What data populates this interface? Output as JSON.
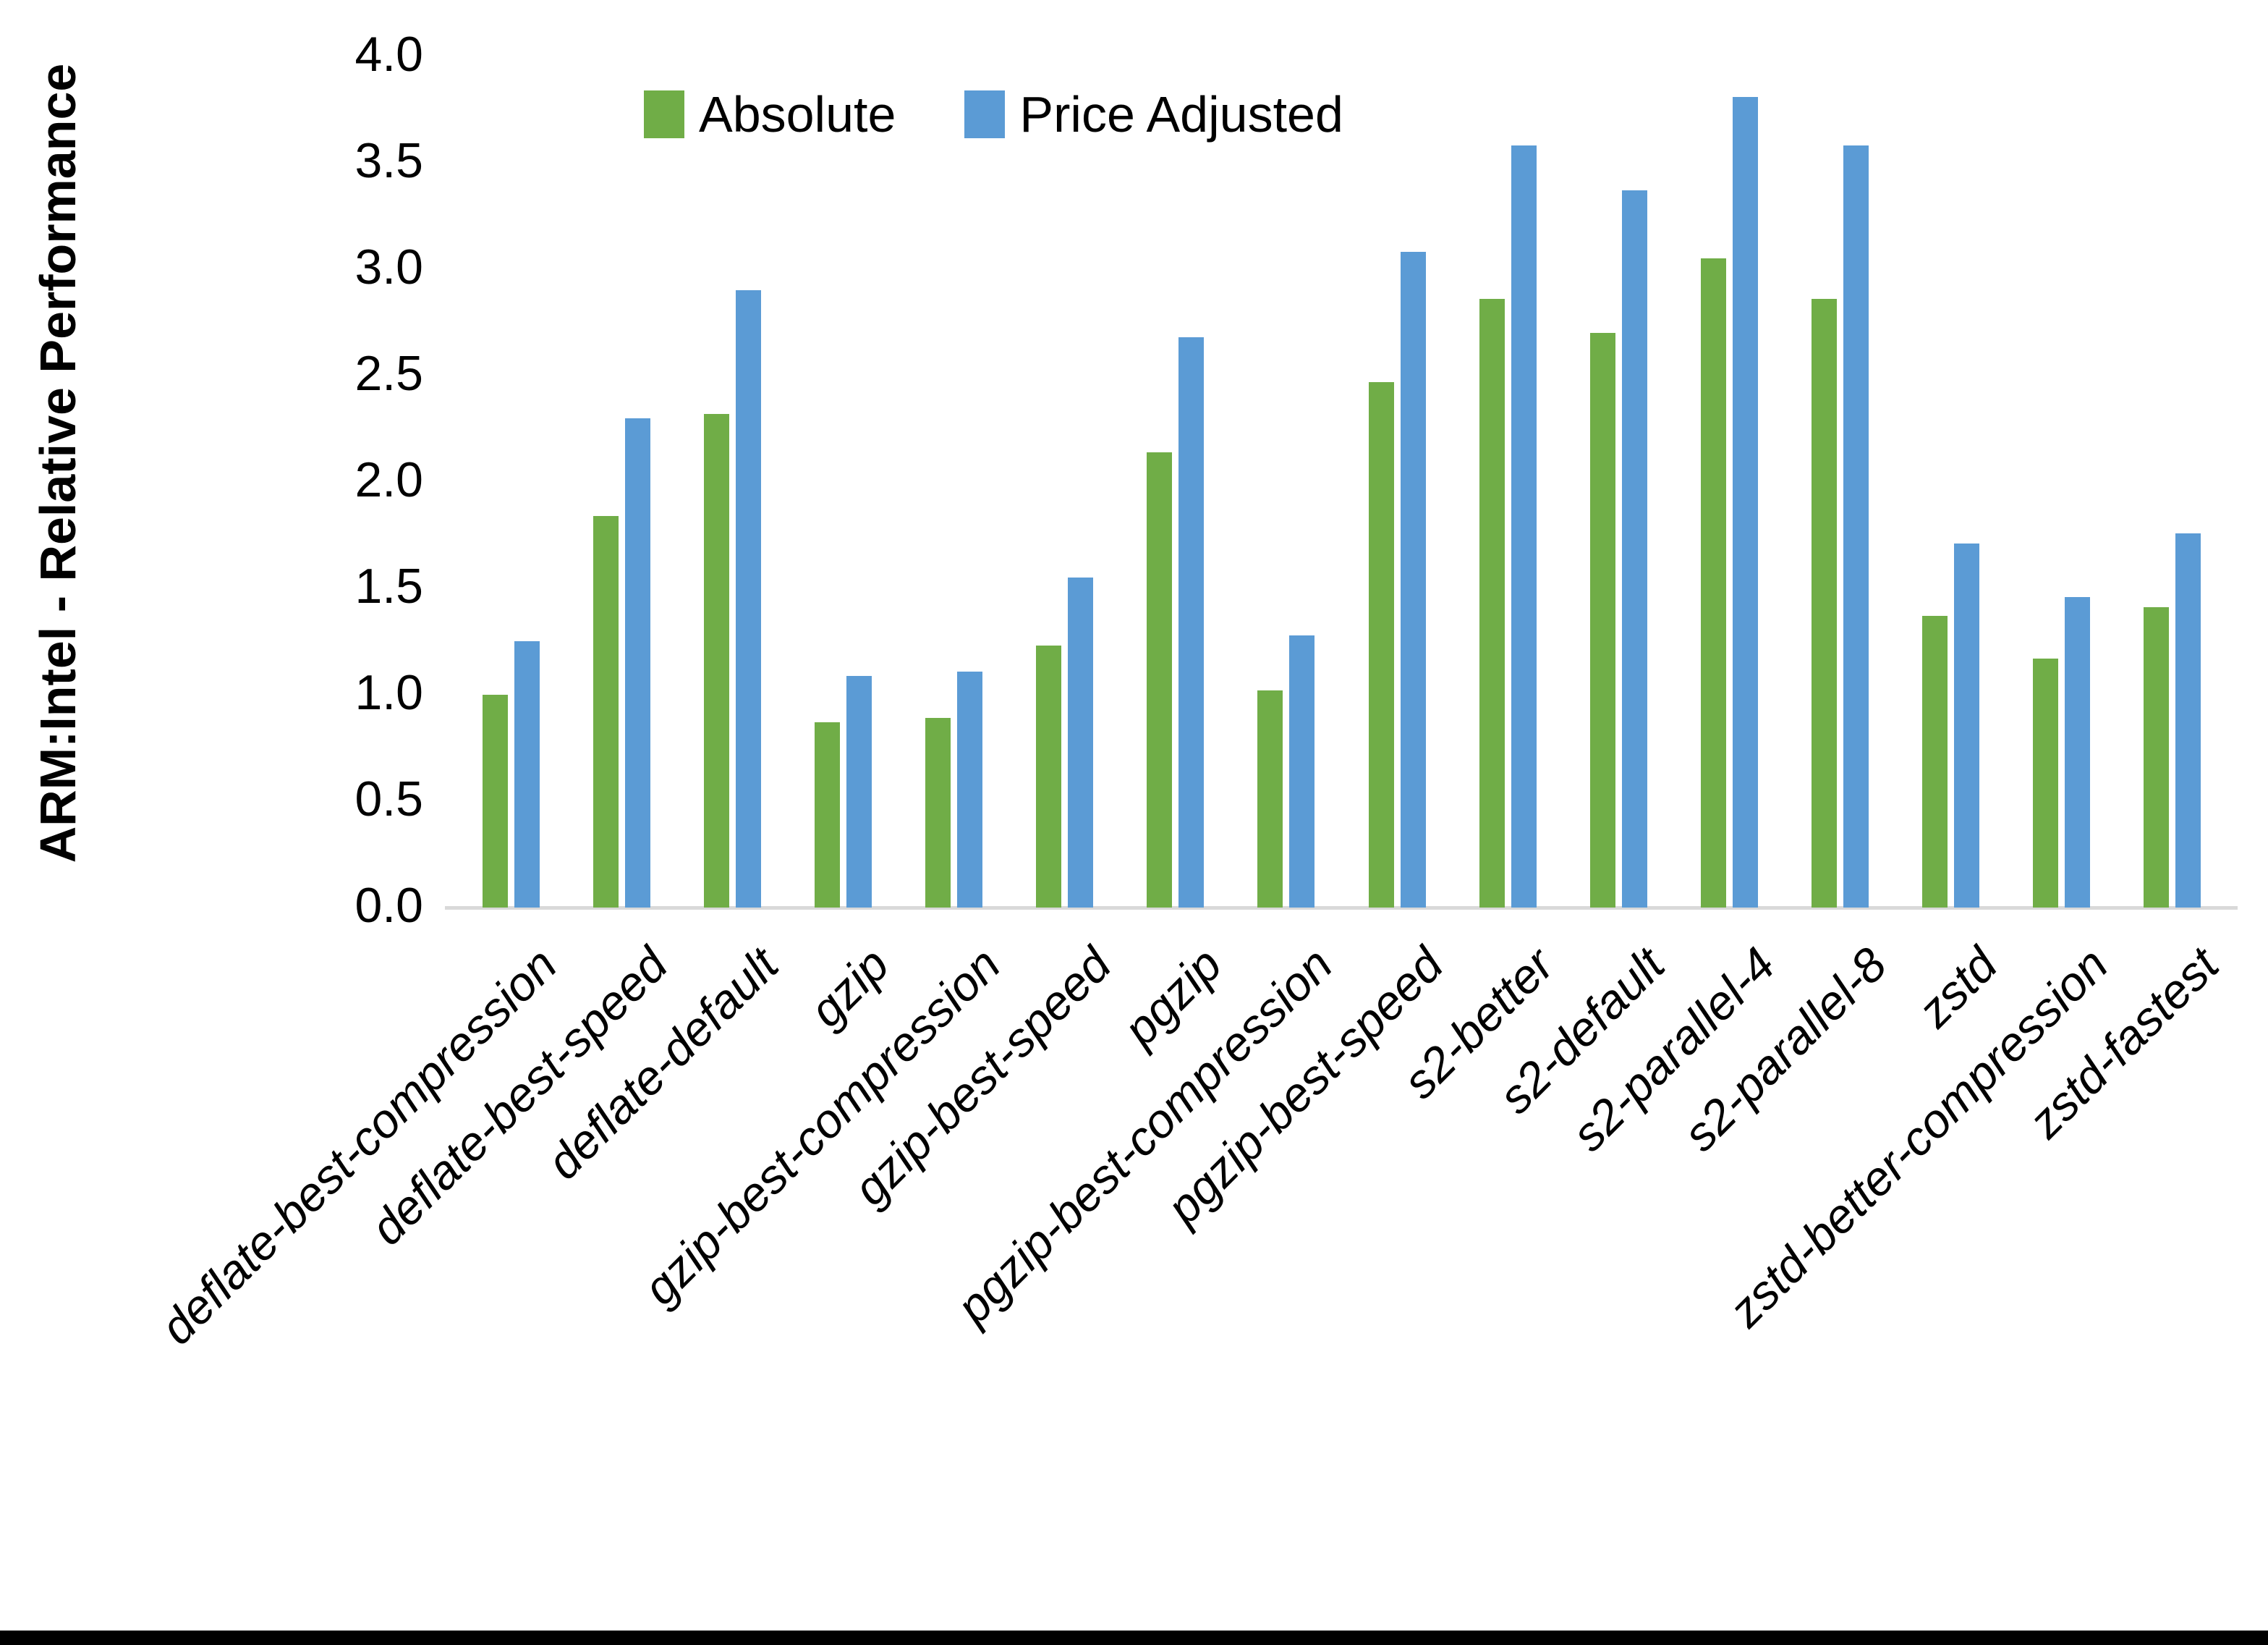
{
  "y_axis": {
    "title": "ARM:Intel - Relative Performance",
    "tick_labels": [
      "0.0",
      "0.5",
      "1.0",
      "1.5",
      "2.0",
      "2.5",
      "3.0",
      "3.5",
      "4.0"
    ]
  },
  "legend": {
    "items": [
      {
        "label": "Absolute",
        "color": "#70AD47"
      },
      {
        "label": "Price Adjusted",
        "color": "#5B9BD5"
      }
    ]
  },
  "chart_data": {
    "type": "bar",
    "title": "",
    "xlabel": "",
    "ylabel": "ARM:Intel - Relative Performance",
    "ylim": [
      0.0,
      4.0
    ],
    "ytick_step": 0.5,
    "grid": false,
    "legend_position": "top-center",
    "categories": [
      "deflate-best-compression",
      "deflate-best-speed",
      "deflate-default",
      "gzip",
      "gzip-best-compression",
      "gzip-best-speed",
      "pgzip",
      "pgzip-best-compression",
      "pgzip-best-speed",
      "s2-better",
      "s2-default",
      "s2-parallel-4",
      "s2-parallel-8",
      "zstd",
      "zstd-better-compression",
      "zstd-fastest"
    ],
    "series": [
      {
        "name": "Absolute",
        "color": "#70AD47",
        "values": [
          1.0,
          1.84,
          2.32,
          0.87,
          0.89,
          1.23,
          2.14,
          1.02,
          2.47,
          2.86,
          2.7,
          3.05,
          2.86,
          1.37,
          1.17,
          1.41
        ]
      },
      {
        "name": "Price Adjusted",
        "color": "#5B9BD5",
        "values": [
          1.25,
          2.3,
          2.9,
          1.09,
          1.11,
          1.55,
          2.68,
          1.28,
          3.08,
          3.58,
          3.37,
          3.81,
          3.58,
          1.71,
          1.46,
          1.76
        ]
      }
    ]
  }
}
